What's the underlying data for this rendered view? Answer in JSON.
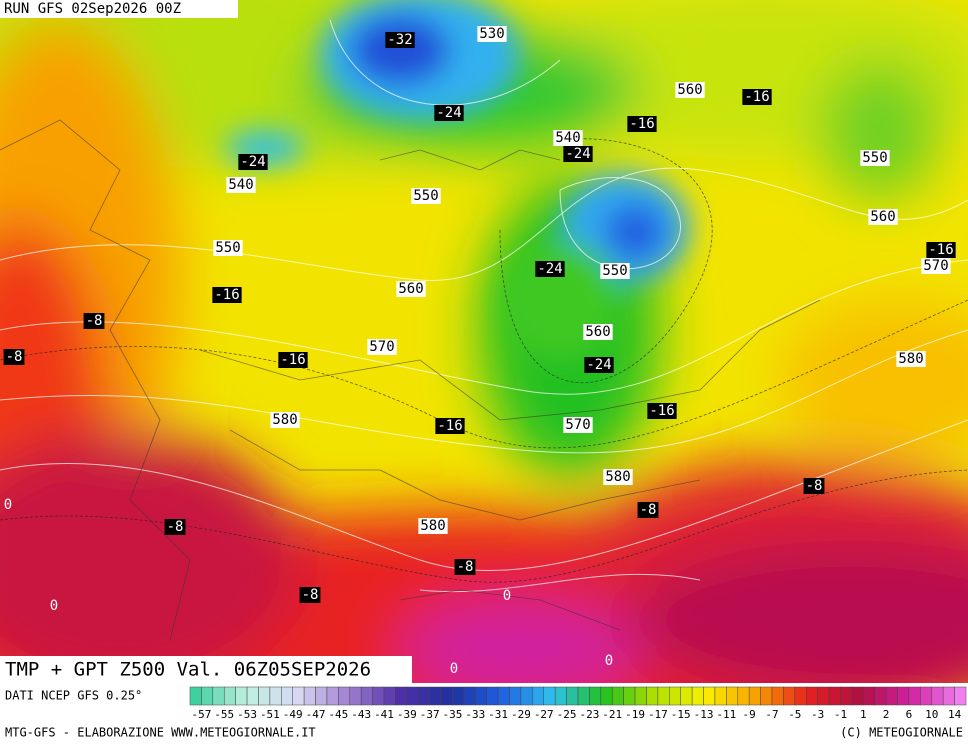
{
  "header": {
    "run": "RUN GFS 02Sep2026 00Z"
  },
  "caption": "TMP + GPT Z500 Val. 06Z05SEP2026",
  "footer": {
    "source": "DATI NCEP GFS 0.25°",
    "credit": "MTG-GFS - ELABORAZIONE WWW.METEOGIORNALE.IT",
    "copyright": "(C) METEOGIORNALE"
  },
  "height_labels": [
    "530",
    "560",
    "540",
    "550",
    "540",
    "550",
    "560",
    "550",
    "570",
    "550",
    "560",
    "560",
    "570",
    "580",
    "580",
    "570",
    "580",
    "580"
  ],
  "temperature_labels": [
    "-32",
    "-16",
    "-24",
    "-16",
    "-24",
    "-24",
    "-16",
    "-24",
    "-16",
    "-8",
    "-8",
    "-16",
    "-24",
    "-16",
    "-16",
    "-8",
    "-8",
    "-8",
    "-8",
    "-8"
  ],
  "zero_labels": [
    "0",
    "0",
    "0",
    "0",
    "0"
  ],
  "colorbar_labels": [
    "-57",
    "-55",
    "-53",
    "-51",
    "-49",
    "-47",
    "-45",
    "-43",
    "-41",
    "-39",
    "-37",
    "-35",
    "-33",
    "-31",
    "-29",
    "-27",
    "-25",
    "-23",
    "-21",
    "-19",
    "-17",
    "-15",
    "-13",
    "-11",
    "-9",
    "-7",
    "-5",
    "-3",
    "-1",
    "1",
    "2",
    "6",
    "10",
    "14"
  ]
}
